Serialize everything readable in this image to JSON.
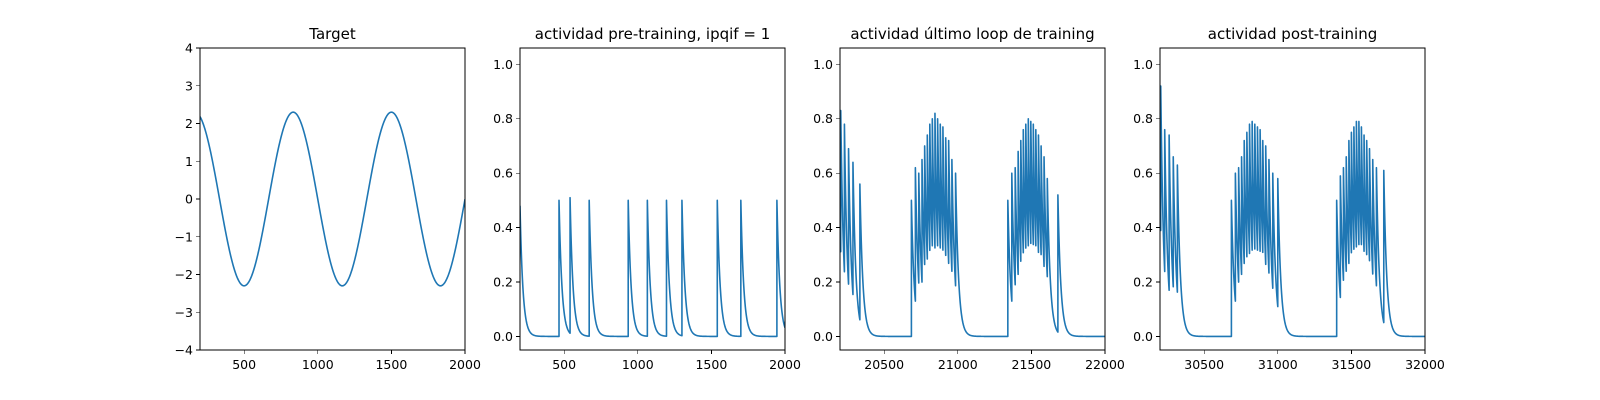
{
  "figure": {
    "background": "#ffffff",
    "line_color": "#1f77b4"
  },
  "chart_data": [
    {
      "id": "target",
      "type": "line",
      "title": "Target",
      "xlim": [
        200,
        2000
      ],
      "ylim": [
        -4,
        4
      ],
      "xticks": [
        500,
        1000,
        1500,
        2000
      ],
      "xtick_labels": [
        "500",
        "1000",
        "1500",
        "2000"
      ],
      "yticks": [
        -4,
        -3,
        -2,
        -1,
        0,
        1,
        2,
        3,
        4
      ],
      "ytick_labels": [
        "−4",
        "−3",
        "−2",
        "−1",
        "0",
        "1",
        "2",
        "3",
        "4"
      ],
      "series": [
        {
          "kind": "sine",
          "amplitude": 2.3,
          "period": 667,
          "peak_x": 833,
          "x_start": 200,
          "x_end": 2000,
          "step": 4
        }
      ]
    },
    {
      "id": "pre-training",
      "type": "line",
      "title": "actividad pre-training, ipqif = 1",
      "xlim": [
        200,
        2000
      ],
      "ylim": [
        -0.05,
        1.06
      ],
      "xticks": [
        500,
        1000,
        1500,
        2000
      ],
      "xtick_labels": [
        "500",
        "1000",
        "1500",
        "2000"
      ],
      "yticks": [
        0.0,
        0.2,
        0.4,
        0.6,
        0.8,
        1.0
      ],
      "ytick_labels": [
        "0.0",
        "0.2",
        "0.4",
        "0.6",
        "0.8",
        "1.0"
      ],
      "series": [
        {
          "kind": "spikes",
          "initial_value": 0.48,
          "decay": 20,
          "step": 2,
          "x_start": 200,
          "x_end": 2000,
          "spikes": [
            [
              465,
              0.5
            ],
            [
              540,
              0.51
            ],
            [
              670,
              0.5
            ],
            [
              935,
              0.5
            ],
            [
              1065,
              0.5
            ],
            [
              1195,
              0.5
            ],
            [
              1300,
              0.5
            ],
            [
              1540,
              0.5
            ],
            [
              1700,
              0.5
            ],
            [
              1945,
              0.5
            ]
          ]
        }
      ]
    },
    {
      "id": "last-training-loop",
      "type": "line",
      "title": "actividad último loop de training",
      "xlim": [
        20200,
        22000
      ],
      "ylim": [
        -0.05,
        1.06
      ],
      "xticks": [
        20500,
        21000,
        21500,
        22000
      ],
      "xtick_labels": [
        "20500",
        "21000",
        "21500",
        "22000"
      ],
      "yticks": [
        0.0,
        0.2,
        0.4,
        0.6,
        0.8,
        1.0
      ],
      "ytick_labels": [
        "0.0",
        "0.2",
        "0.4",
        "0.6",
        "0.8",
        "1.0"
      ],
      "series": [
        {
          "kind": "spikes",
          "initial_value": 0.4,
          "decay": 20,
          "step": 2,
          "x_start": 20200,
          "x_end": 22000,
          "spikes": [
            [
              20205,
              0.83
            ],
            [
              20230,
              0.78
            ],
            [
              20258,
              0.69
            ],
            [
              20288,
              0.64
            ],
            [
              20335,
              0.56
            ],
            [
              20685,
              0.5
            ],
            [
              20712,
              0.62
            ],
            [
              20735,
              0.6
            ],
            [
              20757,
              0.65
            ],
            [
              20775,
              0.7
            ],
            [
              20793,
              0.74
            ],
            [
              20810,
              0.78
            ],
            [
              20827,
              0.8
            ],
            [
              20845,
              0.82
            ],
            [
              20863,
              0.8
            ],
            [
              20881,
              0.78
            ],
            [
              20899,
              0.77
            ],
            [
              20918,
              0.73
            ],
            [
              20938,
              0.72
            ],
            [
              20960,
              0.65
            ],
            [
              20985,
              0.6
            ],
            [
              21340,
              0.5
            ],
            [
              21367,
              0.6
            ],
            [
              21390,
              0.62
            ],
            [
              21410,
              0.68
            ],
            [
              21428,
              0.72
            ],
            [
              21445,
              0.76
            ],
            [
              21462,
              0.78
            ],
            [
              21479,
              0.8
            ],
            [
              21496,
              0.79
            ],
            [
              21513,
              0.78
            ],
            [
              21530,
              0.76
            ],
            [
              21548,
              0.74
            ],
            [
              21566,
              0.7
            ],
            [
              21586,
              0.66
            ],
            [
              21608,
              0.58
            ],
            [
              21680,
              0.52
            ]
          ]
        }
      ]
    },
    {
      "id": "post-training",
      "type": "line",
      "title": "actividad post-training",
      "xlim": [
        30200,
        32000
      ],
      "ylim": [
        -0.05,
        1.06
      ],
      "xticks": [
        30500,
        31000,
        31500,
        32000
      ],
      "xtick_labels": [
        "30500",
        "31000",
        "31500",
        "32000"
      ],
      "yticks": [
        0.0,
        0.2,
        0.4,
        0.6,
        0.8,
        1.0
      ],
      "ytick_labels": [
        "0.0",
        "0.2",
        "0.4",
        "0.6",
        "0.8",
        "1.0"
      ],
      "series": [
        {
          "kind": "spikes",
          "initial_value": 0.5,
          "decay": 20,
          "step": 2,
          "x_start": 30200,
          "x_end": 32000,
          "spikes": [
            [
              30205,
              0.92
            ],
            [
              30232,
              0.76
            ],
            [
              30262,
              0.74
            ],
            [
              30290,
              0.66
            ],
            [
              30318,
              0.63
            ],
            [
              30685,
              0.5
            ],
            [
              30712,
              0.6
            ],
            [
              30734,
              0.62
            ],
            [
              30754,
              0.66
            ],
            [
              30772,
              0.72
            ],
            [
              30790,
              0.75
            ],
            [
              30808,
              0.78
            ],
            [
              30826,
              0.79
            ],
            [
              30844,
              0.78
            ],
            [
              30862,
              0.77
            ],
            [
              30880,
              0.76
            ],
            [
              30898,
              0.72
            ],
            [
              30918,
              0.7
            ],
            [
              30940,
              0.65
            ],
            [
              30966,
              0.6
            ],
            [
              31000,
              0.58
            ],
            [
              31400,
              0.5
            ],
            [
              31425,
              0.59
            ],
            [
              31446,
              0.62
            ],
            [
              31465,
              0.66
            ],
            [
              31483,
              0.72
            ],
            [
              31500,
              0.75
            ],
            [
              31517,
              0.77
            ],
            [
              31534,
              0.79
            ],
            [
              31551,
              0.79
            ],
            [
              31568,
              0.77
            ],
            [
              31586,
              0.74
            ],
            [
              31604,
              0.72
            ],
            [
              31623,
              0.69
            ],
            [
              31645,
              0.65
            ],
            [
              31670,
              0.62
            ],
            [
              31720,
              0.61
            ]
          ]
        }
      ]
    }
  ]
}
